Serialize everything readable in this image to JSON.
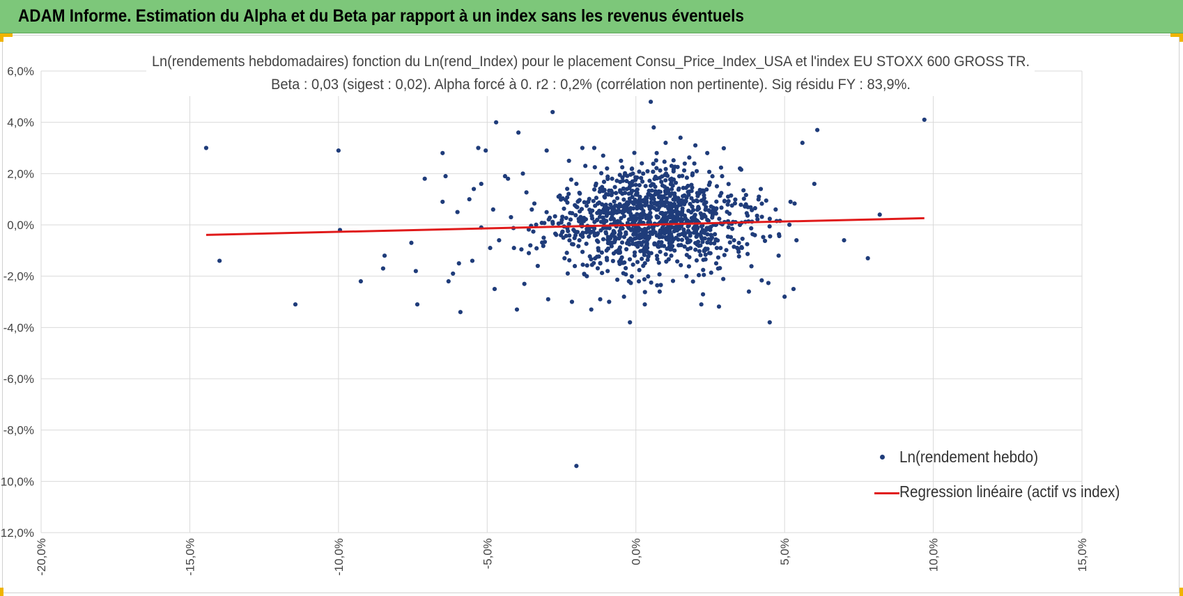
{
  "banner": {
    "title": "ADAM Informe. Estimation du Alpha et du Beta par rapport à un index sans les revenus éventuels"
  },
  "colors": {
    "banner_bg": "#7dc77a",
    "points": "#1f3c7a",
    "regression": "#e01a1a",
    "handles": "#f0b400"
  },
  "chart_data": {
    "type": "scatter",
    "title": "Ln(rendements hebdomadaires) fonction du Ln(rend_Index) pour le placement Consu_Price_Index_USA et l'index EU STOXX 600 GROSS TR.",
    "subtitle": "Beta : 0,03 (sigest : 0,02).  Alpha forcé à 0. r2 : 0,2% (corrélation non pertinente). Sig résidu FY : 83,9%.",
    "xlim": [
      -0.2,
      0.15
    ],
    "ylim": [
      -0.12,
      0.06
    ],
    "x_ticks": [
      -0.2,
      -0.15,
      -0.1,
      -0.05,
      0.0,
      0.05,
      0.1,
      0.15
    ],
    "x_tick_labels": [
      "-20,0%",
      "-15,0%",
      "-10,0%",
      "-5,0%",
      "0,0%",
      "5,0%",
      "10,0%",
      "15,0%"
    ],
    "y_ticks": [
      0.06,
      0.04,
      0.02,
      0.0,
      -0.02,
      -0.04,
      -0.06,
      -0.08,
      -0.1,
      -0.12
    ],
    "y_tick_labels": [
      "6,0%",
      "4,0%",
      "2,0%",
      "0,0%",
      "-2,0%",
      "-4,0%",
      "-6,0%",
      "-8,0%",
      "-10,0%",
      "-12,0%"
    ],
    "grid": true,
    "legend_position": "bottom-right",
    "series": [
      {
        "name": "Ln(rendement hebdo)",
        "type": "scatter",
        "points": [
          [
            -0.1445,
            0.03
          ],
          [
            -0.14,
            -0.014
          ],
          [
            -0.1145,
            -0.031
          ],
          [
            -0.1,
            0.029
          ],
          [
            -0.0995,
            -0.002
          ],
          [
            -0.0925,
            -0.022
          ],
          [
            -0.0845,
            -0.012
          ],
          [
            -0.085,
            -0.017
          ],
          [
            -0.0755,
            -0.007
          ],
          [
            -0.074,
            -0.018
          ],
          [
            -0.0735,
            -0.031
          ],
          [
            -0.071,
            0.018
          ],
          [
            -0.065,
            0.028
          ],
          [
            -0.065,
            0.009
          ],
          [
            -0.064,
            0.019
          ],
          [
            -0.063,
            -0.022
          ],
          [
            -0.0615,
            -0.019
          ],
          [
            -0.06,
            0.005
          ],
          [
            -0.0595,
            -0.015
          ],
          [
            -0.059,
            -0.034
          ],
          [
            -0.056,
            0.01
          ],
          [
            -0.055,
            -0.014
          ],
          [
            -0.0545,
            0.014
          ],
          [
            -0.053,
            0.03
          ],
          [
            -0.052,
            0.016
          ],
          [
            -0.052,
            -0.001
          ],
          [
            -0.0505,
            0.029
          ],
          [
            -0.049,
            -0.009
          ],
          [
            -0.048,
            0.006
          ],
          [
            -0.0475,
            -0.025
          ],
          [
            -0.047,
            0.04
          ],
          [
            -0.046,
            -0.006
          ],
          [
            -0.044,
            0.019
          ],
          [
            -0.043,
            0.018
          ],
          [
            -0.042,
            0.003
          ],
          [
            -0.041,
            -0.009
          ],
          [
            -0.04,
            -0.033
          ],
          [
            -0.0395,
            0.036
          ],
          [
            -0.038,
            0.02
          ],
          [
            -0.0375,
            -0.023
          ],
          [
            -0.036,
            -0.011
          ],
          [
            -0.035,
            0.006
          ],
          [
            -0.033,
            -0.016
          ],
          [
            -0.031,
            -0.005
          ],
          [
            -0.03,
            0.029
          ],
          [
            -0.0295,
            -0.029
          ],
          [
            -0.028,
            0.044
          ],
          [
            -0.026,
            0.011
          ],
          [
            -0.024,
            -0.013
          ],
          [
            -0.0225,
            0.025
          ],
          [
            -0.0215,
            -0.03
          ],
          [
            -0.02,
            0.016
          ],
          [
            -0.019,
            -0.006
          ],
          [
            -0.018,
            0.03
          ],
          [
            -0.017,
            0.023
          ],
          [
            -0.0165,
            -0.02
          ],
          [
            -0.016,
            0.009
          ],
          [
            -0.015,
            -0.033
          ],
          [
            -0.014,
            0.03
          ],
          [
            -0.013,
            0.002
          ],
          [
            -0.012,
            -0.029
          ],
          [
            -0.011,
            0.027
          ],
          [
            -0.01,
            0.012
          ],
          [
            -0.0095,
            -0.018
          ],
          [
            -0.009,
            -0.03
          ],
          [
            -0.008,
            0.018
          ],
          [
            -0.007,
            0.005
          ],
          [
            -0.006,
            -0.01
          ],
          [
            -0.005,
            0.025
          ],
          [
            -0.004,
            -0.028
          ],
          [
            -0.003,
            0.014
          ],
          [
            -0.002,
            -0.038
          ],
          [
            -0.001,
            0.02
          ],
          [
            0.001,
            -0.022
          ],
          [
            0.002,
            0.024
          ],
          [
            0.003,
            -0.031
          ],
          [
            0.005,
            0.048
          ],
          [
            0.006,
            0.038
          ],
          [
            0.007,
            0.028
          ],
          [
            0.008,
            -0.026
          ],
          [
            0.01,
            0.032
          ],
          [
            0.012,
            0.023
          ],
          [
            0.013,
            -0.01
          ],
          [
            0.015,
            0.034
          ],
          [
            0.017,
            -0.02
          ],
          [
            0.018,
            0.013
          ],
          [
            0.02,
            0.031
          ],
          [
            0.022,
            -0.031
          ],
          [
            0.024,
            0.028
          ],
          [
            0.025,
            0.005
          ],
          [
            0.027,
            -0.015
          ],
          [
            0.029,
            0.019
          ],
          [
            0.031,
            0.011
          ],
          [
            0.033,
            -0.006
          ],
          [
            0.035,
            0.022
          ],
          [
            0.037,
            0.008
          ],
          [
            0.038,
            -0.026
          ],
          [
            0.04,
            -0.004
          ],
          [
            0.042,
            0.014
          ],
          [
            0.045,
            -0.038
          ],
          [
            0.047,
            0.006
          ],
          [
            0.048,
            -0.012
          ],
          [
            0.05,
            -0.028
          ],
          [
            0.052,
            0.009
          ],
          [
            0.053,
            -0.025
          ],
          [
            0.054,
            -0.006
          ],
          [
            0.056,
            0.032
          ],
          [
            0.061,
            0.037
          ],
          [
            0.06,
            0.016
          ],
          [
            0.07,
            -0.006
          ],
          [
            0.078,
            -0.013
          ],
          [
            0.082,
            0.004
          ],
          [
            0.097,
            0.041
          ],
          [
            -0.02,
            -0.094
          ]
        ]
      },
      {
        "name": "Regression linéaire (actif vs index)",
        "type": "line",
        "points": [
          [
            -0.1445,
            -0.0039
          ],
          [
            0.097,
            0.0026
          ]
        ]
      }
    ]
  }
}
